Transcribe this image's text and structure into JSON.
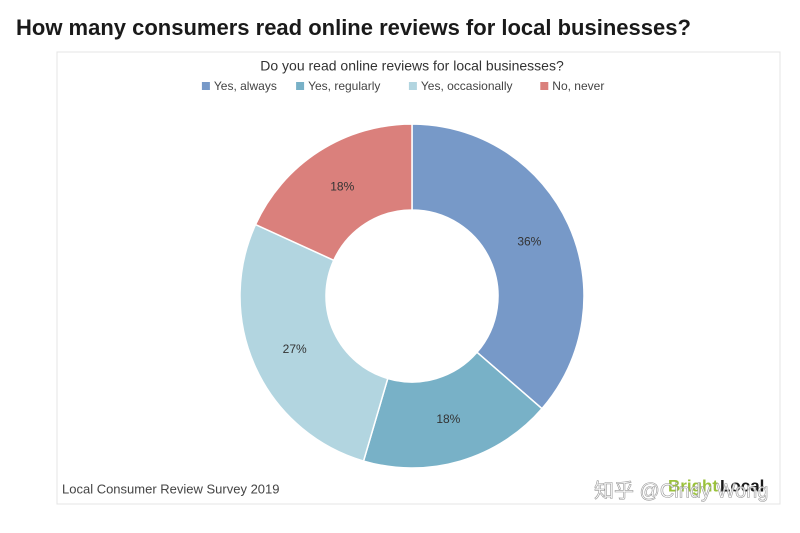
{
  "chart_data": {
    "type": "donut",
    "heading": "How many consumers read online reviews for local businesses?",
    "title": "Do you read online reviews for local businesses?",
    "categories": [
      "Yes, always",
      "Yes, regularly",
      "Yes, occasionally",
      "No, never"
    ],
    "values": [
      36,
      18,
      27,
      18
    ],
    "value_labels": [
      "36%",
      "18%",
      "27%",
      "18%"
    ],
    "colors": [
      "#7799c8",
      "#78b1c7",
      "#b2d5e0",
      "#da807c"
    ],
    "legend": "top",
    "source": "Local Consumer Review Survey 2019",
    "brand": [
      "Bright",
      "Local"
    ],
    "watermark": "知乎 @Cindy Wong"
  }
}
